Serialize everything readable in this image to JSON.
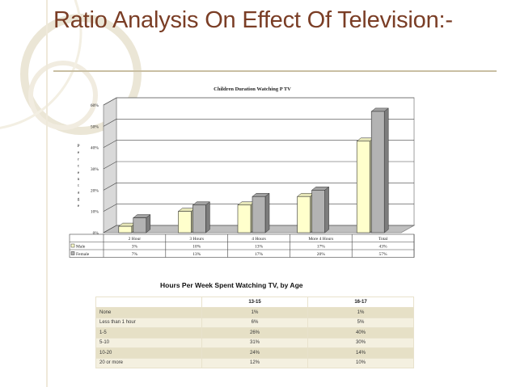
{
  "slide": {
    "title": "Ratio Analysis On Effect Of Television:-",
    "colors": {
      "title": "#7a3d25",
      "male": "#ffffcc",
      "female": "#b3b3b3",
      "table_odd": "#e6e0c6",
      "table_even": "#f4f0e0"
    }
  },
  "chart_data": [
    {
      "type": "bar",
      "title": "Children Duration Watching P TV",
      "ylabel": "Percentage",
      "ylim": [
        0,
        60
      ],
      "yticks": [
        "0%",
        "10%",
        "20%",
        "30%",
        "40%",
        "50%",
        "60%"
      ],
      "categories": [
        "2 Hour",
        "3 Hours",
        "4 Hours",
        "More 4 Hours",
        "Total"
      ],
      "series": [
        {
          "name": "Male",
          "values": [
            3,
            10,
            13,
            17,
            43
          ],
          "labels": [
            "3%",
            "10%",
            "13%",
            "17%",
            "43%"
          ]
        },
        {
          "name": "Female",
          "values": [
            7,
            13,
            17,
            20,
            57
          ],
          "labels": [
            "7%",
            "13%",
            "17%",
            "20%",
            "57%"
          ]
        }
      ]
    },
    {
      "type": "table",
      "title": "Hours Per Week Spent Watching TV, by Age",
      "columns": [
        "13-15",
        "16-17"
      ],
      "rows": [
        {
          "label": "None",
          "values": [
            "1%",
            "1%"
          ]
        },
        {
          "label": "Less than 1 hour",
          "values": [
            "6%",
            "5%"
          ]
        },
        {
          "label": "1-5",
          "values": [
            "26%",
            "40%"
          ]
        },
        {
          "label": "5-10",
          "values": [
            "31%",
            "30%"
          ]
        },
        {
          "label": "10-20",
          "values": [
            "24%",
            "14%"
          ]
        },
        {
          "label": "20 or more",
          "values": [
            "12%",
            "10%"
          ]
        }
      ]
    }
  ]
}
